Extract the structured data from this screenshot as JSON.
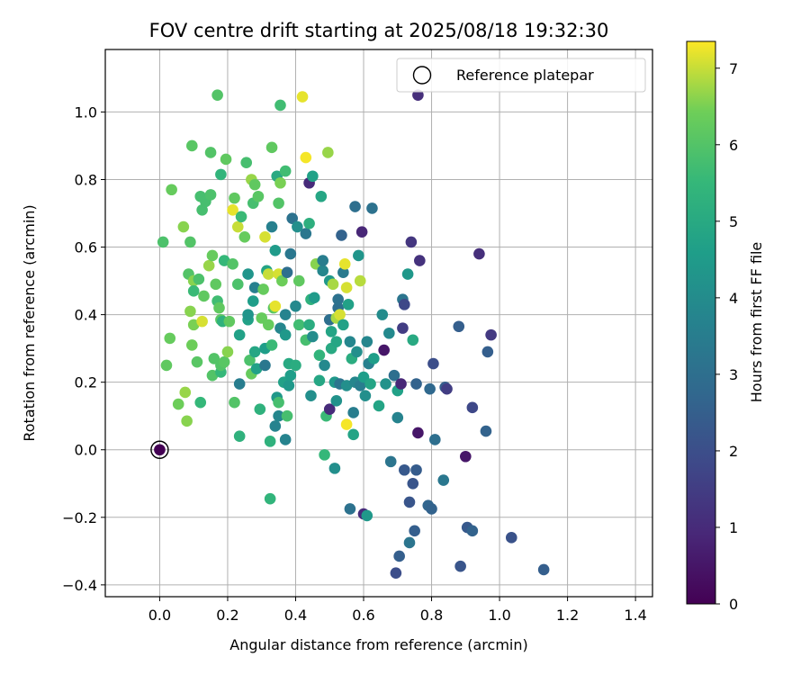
{
  "chart_data": {
    "type": "scatter",
    "title": "FOV centre drift starting at 2025/08/18 19:32:30",
    "xlabel": "Angular distance from reference (arcmin)",
    "ylabel": "Rotation from reference (arcmin)",
    "xlim": [
      -0.16,
      1.45
    ],
    "ylim": [
      -0.435,
      1.185
    ],
    "xticks": [
      0.0,
      0.2,
      0.4,
      0.6,
      0.8,
      1.0,
      1.2,
      1.4
    ],
    "xtick_labels": [
      "0.0",
      "0.2",
      "0.4",
      "0.6",
      "0.8",
      "1.0",
      "1.2",
      "1.4"
    ],
    "yticks": [
      -0.4,
      -0.2,
      0.0,
      0.2,
      0.4,
      0.6,
      0.8,
      1.0
    ],
    "ytick_labels": [
      "−0.4",
      "−0.2",
      "0.0",
      "0.2",
      "0.4",
      "0.6",
      "0.8",
      "1.0"
    ],
    "grid": true,
    "legend": {
      "position": "top-right",
      "entries": [
        "Reference platepar"
      ]
    },
    "colorbar": {
      "label": "Hours from first FF file",
      "colormap": "viridis",
      "range": [
        0,
        7.35
      ],
      "ticks": [
        0,
        1,
        2,
        3,
        4,
        5,
        6,
        7
      ],
      "tick_labels": [
        "0",
        "1",
        "2",
        "3",
        "4",
        "5",
        "6",
        "7"
      ]
    },
    "reference_point": {
      "label": "Reference platepar",
      "x": 0.0,
      "y": 0.0
    },
    "points": [
      [
        0.0,
        0.0,
        0.0
      ],
      [
        0.01,
        0.615,
        5.9
      ],
      [
        0.02,
        0.25,
        6.2
      ],
      [
        0.03,
        0.33,
        6.3
      ],
      [
        0.035,
        0.77,
        6.3
      ],
      [
        0.055,
        0.135,
        6.4
      ],
      [
        0.07,
        0.66,
        6.6
      ],
      [
        0.075,
        0.17,
        6.7
      ],
      [
        0.08,
        0.085,
        6.6
      ],
      [
        0.085,
        0.52,
        6.0
      ],
      [
        0.09,
        0.615,
        6.0
      ],
      [
        0.09,
        0.41,
        6.6
      ],
      [
        0.095,
        0.9,
        6.1
      ],
      [
        0.095,
        0.31,
        6.4
      ],
      [
        0.1,
        0.5,
        6.6
      ],
      [
        0.1,
        0.37,
        6.5
      ],
      [
        0.1,
        0.47,
        5.6
      ],
      [
        0.11,
        0.26,
        6.1
      ],
      [
        0.115,
        0.505,
        5.9
      ],
      [
        0.12,
        0.75,
        5.8
      ],
      [
        0.12,
        0.14,
        5.5
      ],
      [
        0.125,
        0.71,
        5.8
      ],
      [
        0.125,
        0.38,
        7.1
      ],
      [
        0.13,
        0.455,
        6.2
      ],
      [
        0.135,
        0.735,
        5.8
      ],
      [
        0.145,
        0.545,
        6.7
      ],
      [
        0.15,
        0.755,
        5.9
      ],
      [
        0.15,
        0.88,
        6.0
      ],
      [
        0.155,
        0.22,
        6.0
      ],
      [
        0.155,
        0.575,
        6.3
      ],
      [
        0.16,
        0.27,
        6.0
      ],
      [
        0.165,
        0.49,
        6.2
      ],
      [
        0.17,
        0.44,
        5.7
      ],
      [
        0.17,
        1.05,
        6.0
      ],
      [
        0.175,
        0.42,
        6.2
      ],
      [
        0.18,
        0.23,
        5.5
      ],
      [
        0.18,
        0.25,
        6.0
      ],
      [
        0.18,
        0.385,
        6.1
      ],
      [
        0.18,
        0.815,
        5.4
      ],
      [
        0.185,
        0.38,
        5.3
      ],
      [
        0.19,
        0.56,
        5.5
      ],
      [
        0.19,
        0.26,
        6.1
      ],
      [
        0.195,
        0.86,
        6.2
      ],
      [
        0.2,
        0.29,
        6.6
      ],
      [
        0.205,
        0.38,
        6.2
      ],
      [
        0.215,
        0.71,
        7.2
      ],
      [
        0.215,
        0.55,
        6.0
      ],
      [
        0.22,
        0.745,
        6.2
      ],
      [
        0.22,
        0.14,
        6.0
      ],
      [
        0.23,
        0.49,
        5.9
      ],
      [
        0.23,
        0.66,
        7.0
      ],
      [
        0.235,
        0.04,
        5.3
      ],
      [
        0.235,
        0.34,
        4.7
      ],
      [
        0.235,
        0.195,
        3.5
      ],
      [
        0.24,
        0.69,
        5.6
      ],
      [
        0.25,
        0.63,
        6.3
      ],
      [
        0.255,
        0.85,
        5.8
      ],
      [
        0.26,
        0.385,
        4.7
      ],
      [
        0.26,
        0.52,
        4.3
      ],
      [
        0.26,
        0.4,
        4.3
      ],
      [
        0.265,
        0.265,
        5.9
      ],
      [
        0.27,
        0.8,
        6.7
      ],
      [
        0.27,
        0.225,
        6.3
      ],
      [
        0.275,
        0.73,
        5.8
      ],
      [
        0.275,
        0.44,
        4.6
      ],
      [
        0.28,
        0.48,
        3.6
      ],
      [
        0.28,
        0.29,
        4.9
      ],
      [
        0.28,
        0.785,
        6.2
      ],
      [
        0.285,
        0.24,
        4.7
      ],
      [
        0.29,
        0.75,
        6.1
      ],
      [
        0.295,
        0.12,
        5.3
      ],
      [
        0.3,
        0.39,
        6.3
      ],
      [
        0.305,
        0.475,
        6.3
      ],
      [
        0.31,
        0.25,
        3.3
      ],
      [
        0.31,
        0.3,
        4.6
      ],
      [
        0.31,
        0.63,
        7.1
      ],
      [
        0.315,
        0.53,
        4.8
      ],
      [
        0.32,
        0.37,
        6.3
      ],
      [
        0.32,
        0.52,
        7.0
      ],
      [
        0.325,
        0.025,
        5.3
      ],
      [
        0.325,
        -0.145,
        5.4
      ],
      [
        0.33,
        0.66,
        3.6
      ],
      [
        0.33,
        0.31,
        5.6
      ],
      [
        0.33,
        0.895,
        6.2
      ],
      [
        0.335,
        0.42,
        6.1
      ],
      [
        0.34,
        0.07,
        3.7
      ],
      [
        0.34,
        0.59,
        4.5
      ],
      [
        0.34,
        0.425,
        7.2
      ],
      [
        0.345,
        0.155,
        4.4
      ],
      [
        0.345,
        0.81,
        5.0
      ],
      [
        0.35,
        0.14,
        5.8
      ],
      [
        0.35,
        0.1,
        3.8
      ],
      [
        0.35,
        0.52,
        7.1
      ],
      [
        0.35,
        0.73,
        6.0
      ],
      [
        0.355,
        0.36,
        3.8
      ],
      [
        0.355,
        1.02,
        5.7
      ],
      [
        0.355,
        0.79,
        6.5
      ],
      [
        0.36,
        0.5,
        6.4
      ],
      [
        0.365,
        0.2,
        4.7
      ],
      [
        0.37,
        0.4,
        3.7
      ],
      [
        0.37,
        0.34,
        4.4
      ],
      [
        0.37,
        0.825,
        5.7
      ],
      [
        0.37,
        0.03,
        3.7
      ],
      [
        0.375,
        0.1,
        5.8
      ],
      [
        0.375,
        0.525,
        3.0
      ],
      [
        0.38,
        0.255,
        5.0
      ],
      [
        0.38,
        0.19,
        4.4
      ],
      [
        0.385,
        0.22,
        4.6
      ],
      [
        0.385,
        0.58,
        3.3
      ],
      [
        0.39,
        0.685,
        3.1
      ],
      [
        0.4,
        0.425,
        3.9
      ],
      [
        0.4,
        0.25,
        5.1
      ],
      [
        0.405,
        0.66,
        4.1
      ],
      [
        0.41,
        0.37,
        5.7
      ],
      [
        0.41,
        0.5,
        6.2
      ],
      [
        0.42,
        1.045,
        7.2
      ],
      [
        0.43,
        0.325,
        5.8
      ],
      [
        0.43,
        0.865,
        7.3
      ],
      [
        0.43,
        0.64,
        3.3
      ],
      [
        0.44,
        0.79,
        1.0
      ],
      [
        0.44,
        0.37,
        5.1
      ],
      [
        0.44,
        0.67,
        5.2
      ],
      [
        0.445,
        0.445,
        5.3
      ],
      [
        0.445,
        0.16,
        4.1
      ],
      [
        0.45,
        0.335,
        4.0
      ],
      [
        0.45,
        0.81,
        4.7
      ],
      [
        0.455,
        0.45,
        4.5
      ],
      [
        0.46,
        0.55,
        6.6
      ],
      [
        0.47,
        0.28,
        5.4
      ],
      [
        0.47,
        0.205,
        4.9
      ],
      [
        0.475,
        0.75,
        4.9
      ],
      [
        0.48,
        0.53,
        3.8
      ],
      [
        0.48,
        0.56,
        3.5
      ],
      [
        0.485,
        -0.015,
        5.5
      ],
      [
        0.485,
        0.25,
        3.9
      ],
      [
        0.49,
        0.1,
        5.6
      ],
      [
        0.495,
        0.88,
        6.7
      ],
      [
        0.5,
        0.12,
        1.0
      ],
      [
        0.5,
        0.5,
        4.4
      ],
      [
        0.5,
        0.385,
        3.0
      ],
      [
        0.505,
        0.35,
        4.8
      ],
      [
        0.505,
        0.3,
        5.0
      ],
      [
        0.51,
        0.49,
        6.8
      ],
      [
        0.515,
        0.2,
        4.4
      ],
      [
        0.515,
        -0.055,
        4.1
      ],
      [
        0.52,
        0.32,
        4.9
      ],
      [
        0.52,
        0.39,
        6.8
      ],
      [
        0.52,
        0.145,
        4.2
      ],
      [
        0.525,
        0.42,
        3.0
      ],
      [
        0.525,
        0.445,
        3.1
      ],
      [
        0.53,
        0.4,
        7.1
      ],
      [
        0.53,
        0.195,
        3.2
      ],
      [
        0.535,
        0.635,
        2.6
      ],
      [
        0.54,
        0.525,
        3.4
      ],
      [
        0.54,
        0.37,
        4.7
      ],
      [
        0.545,
        0.55,
        7.2
      ],
      [
        0.55,
        0.19,
        4.1
      ],
      [
        0.55,
        0.48,
        7.1
      ],
      [
        0.55,
        0.075,
        7.3
      ],
      [
        0.555,
        0.43,
        4.7
      ],
      [
        0.56,
        0.32,
        3.8
      ],
      [
        0.56,
        -0.175,
        3.1
      ],
      [
        0.565,
        0.27,
        5.1
      ],
      [
        0.57,
        0.11,
        3.5
      ],
      [
        0.57,
        0.045,
        4.8
      ],
      [
        0.575,
        0.72,
        3.0
      ],
      [
        0.575,
        0.2,
        3.8
      ],
      [
        0.58,
        0.29,
        4.1
      ],
      [
        0.585,
        0.575,
        4.3
      ],
      [
        0.59,
        0.19,
        3.5
      ],
      [
        0.59,
        0.5,
        6.9
      ],
      [
        0.595,
        0.645,
        0.9
      ],
      [
        0.6,
        -0.19,
        1.0
      ],
      [
        0.6,
        0.215,
        4.6
      ],
      [
        0.605,
        0.16,
        4.1
      ],
      [
        0.61,
        -0.195,
        4.4
      ],
      [
        0.61,
        0.32,
        3.8
      ],
      [
        0.615,
        0.255,
        3.6
      ],
      [
        0.62,
        0.195,
        4.8
      ],
      [
        0.625,
        0.715,
        3.1
      ],
      [
        0.63,
        0.27,
        4.6
      ],
      [
        0.645,
        0.13,
        4.8
      ],
      [
        0.655,
        0.4,
        4.0
      ],
      [
        0.66,
        0.295,
        0.5
      ],
      [
        0.665,
        0.195,
        4.2
      ],
      [
        0.675,
        0.345,
        3.9
      ],
      [
        0.68,
        -0.035,
        3.2
      ],
      [
        0.69,
        0.22,
        3.0
      ],
      [
        0.695,
        -0.365,
        2.0
      ],
      [
        0.7,
        0.175,
        4.7
      ],
      [
        0.7,
        0.095,
        3.7
      ],
      [
        0.705,
        -0.315,
        2.5
      ],
      [
        0.71,
        0.195,
        0.9
      ],
      [
        0.715,
        0.36,
        1.5
      ],
      [
        0.715,
        0.445,
        3.2
      ],
      [
        0.72,
        -0.06,
        2.3
      ],
      [
        0.72,
        0.43,
        1.8
      ],
      [
        0.73,
        0.52,
        4.4
      ],
      [
        0.735,
        -0.275,
        3.2
      ],
      [
        0.735,
        -0.155,
        2.2
      ],
      [
        0.74,
        0.615,
        1.3
      ],
      [
        0.745,
        0.325,
        5.0
      ],
      [
        0.745,
        -0.1,
        2.2
      ],
      [
        0.75,
        -0.24,
        2.5
      ],
      [
        0.755,
        -0.06,
        2.4
      ],
      [
        0.755,
        0.195,
        2.6
      ],
      [
        0.76,
        1.05,
        1.1
      ],
      [
        0.76,
        0.05,
        0.5
      ],
      [
        0.765,
        0.56,
        1.2
      ],
      [
        0.79,
        -0.165,
        2.7
      ],
      [
        0.795,
        0.18,
        2.8
      ],
      [
        0.8,
        -0.175,
        2.6
      ],
      [
        0.805,
        0.255,
        2.0
      ],
      [
        0.81,
        0.03,
        3.0
      ],
      [
        0.835,
        -0.09,
        3.3
      ],
      [
        0.84,
        0.185,
        2.4
      ],
      [
        0.845,
        0.18,
        1.5
      ],
      [
        0.88,
        0.365,
        2.5
      ],
      [
        0.885,
        -0.345,
        2.2
      ],
      [
        0.9,
        -0.02,
        0.5
      ],
      [
        0.905,
        -0.23,
        2.3
      ],
      [
        0.92,
        0.125,
        1.8
      ],
      [
        0.92,
        -0.24,
        2.6
      ],
      [
        0.94,
        0.58,
        1.1
      ],
      [
        0.96,
        0.055,
        2.6
      ],
      [
        0.965,
        0.29,
        2.5
      ],
      [
        0.975,
        0.34,
        1.4
      ],
      [
        1.035,
        -0.26,
        2.1
      ],
      [
        1.13,
        -0.355,
        2.5
      ]
    ]
  }
}
